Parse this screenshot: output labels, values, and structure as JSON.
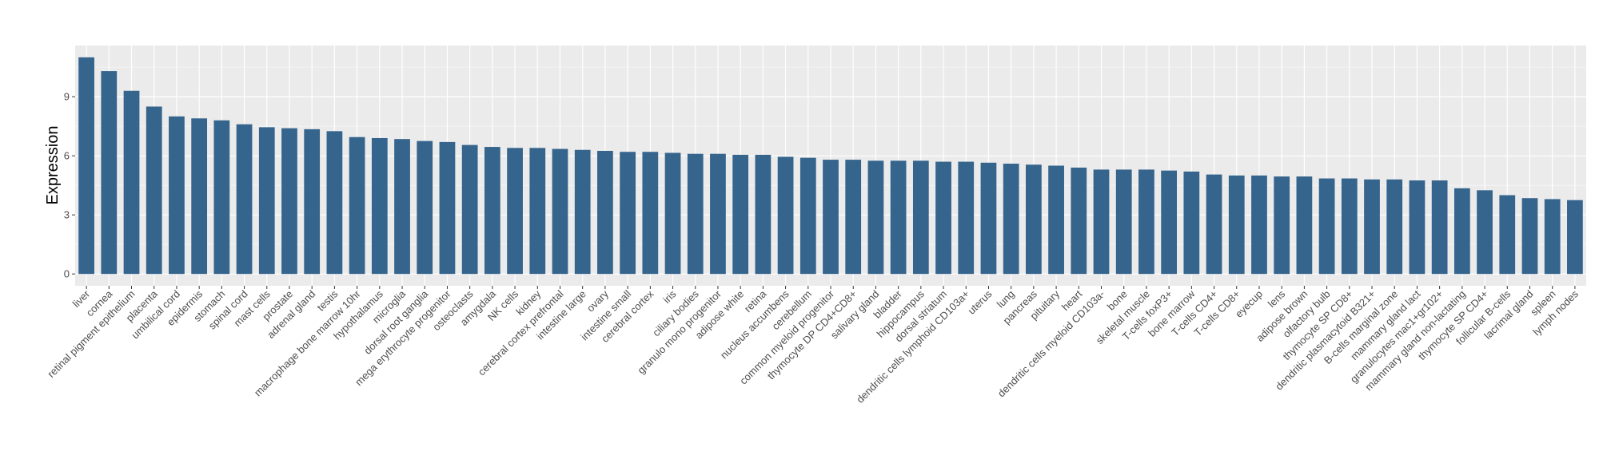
{
  "chart_data": {
    "type": "bar",
    "title": "",
    "xlabel": "",
    "ylabel": "Expression",
    "ylim": [
      -0.6,
      11.6
    ],
    "yticks": [
      0,
      3,
      6,
      9
    ],
    "grid": true,
    "legend": "none",
    "colors": {
      "bar": "#35648d",
      "panel": "#ebebeb",
      "grid_major": "#ffffff",
      "grid_minor": "#f5f5f5"
    },
    "categories": [
      "liver",
      "cornea",
      "retinal pigment epithelium",
      "placenta",
      "umbilical cord",
      "epidermis",
      "stomach",
      "spinal cord",
      "mast cells",
      "prostate",
      "adrenal gland",
      "testis",
      "macrophage bone marrow 10hr",
      "hypothalamus",
      "microglia",
      "dorsal root ganglia",
      "mega erythrocyte progenitor",
      "osteoclasts",
      "amygdala",
      "NK cells",
      "kidney",
      "cerebral cortex prefrontal",
      "intestine large",
      "ovary",
      "intestine small",
      "cerebral cortex",
      "iris",
      "ciliary bodies",
      "granulo mono progenitor",
      "adipose white",
      "retina",
      "nucleus accumbens",
      "cerebellum",
      "common myeloid progenitor",
      "thymocyte DP CD4+CD8+",
      "salivary gland",
      "bladder",
      "hippocampus",
      "dorsal striatum",
      "dendritic cells lymphoid CD103a+",
      "uterus",
      "lung",
      "pancreas",
      "pituitary",
      "heart",
      "dendritic cells myeloid CD103a-",
      "bone",
      "skeletal muscle",
      "T-cells foxP3+",
      "bone marrow",
      "T-cells CD4+",
      "T-cells CD8+",
      "eyecup",
      "lens",
      "adipose brown",
      "olfactory bulb",
      "thymocyte SP CD8+",
      "dendritic plasmacytoid B321+",
      "B-cells marginal zone",
      "mammary gland  lact",
      "granulocytes mac1+gr102+",
      "mammary gland non-lactating",
      "thymocyte SP CD4+",
      "follicular B-cells",
      "lacrimal gland",
      "spleen",
      "lymph nodes"
    ],
    "values": [
      11.0,
      10.3,
      9.3,
      8.5,
      8.0,
      7.9,
      7.8,
      7.6,
      7.45,
      7.4,
      7.35,
      7.25,
      6.95,
      6.9,
      6.85,
      6.75,
      6.7,
      6.55,
      6.45,
      6.4,
      6.4,
      6.35,
      6.3,
      6.25,
      6.2,
      6.2,
      6.15,
      6.1,
      6.1,
      6.05,
      6.05,
      5.95,
      5.9,
      5.8,
      5.8,
      5.75,
      5.75,
      5.75,
      5.7,
      5.7,
      5.65,
      5.6,
      5.55,
      5.5,
      5.4,
      5.3,
      5.3,
      5.3,
      5.25,
      5.2,
      5.05,
      5.0,
      5.0,
      4.95,
      4.95,
      4.85,
      4.85,
      4.8,
      4.8,
      4.75,
      4.75,
      4.35,
      4.25,
      4.0,
      3.85,
      3.8,
      3.75
    ]
  }
}
